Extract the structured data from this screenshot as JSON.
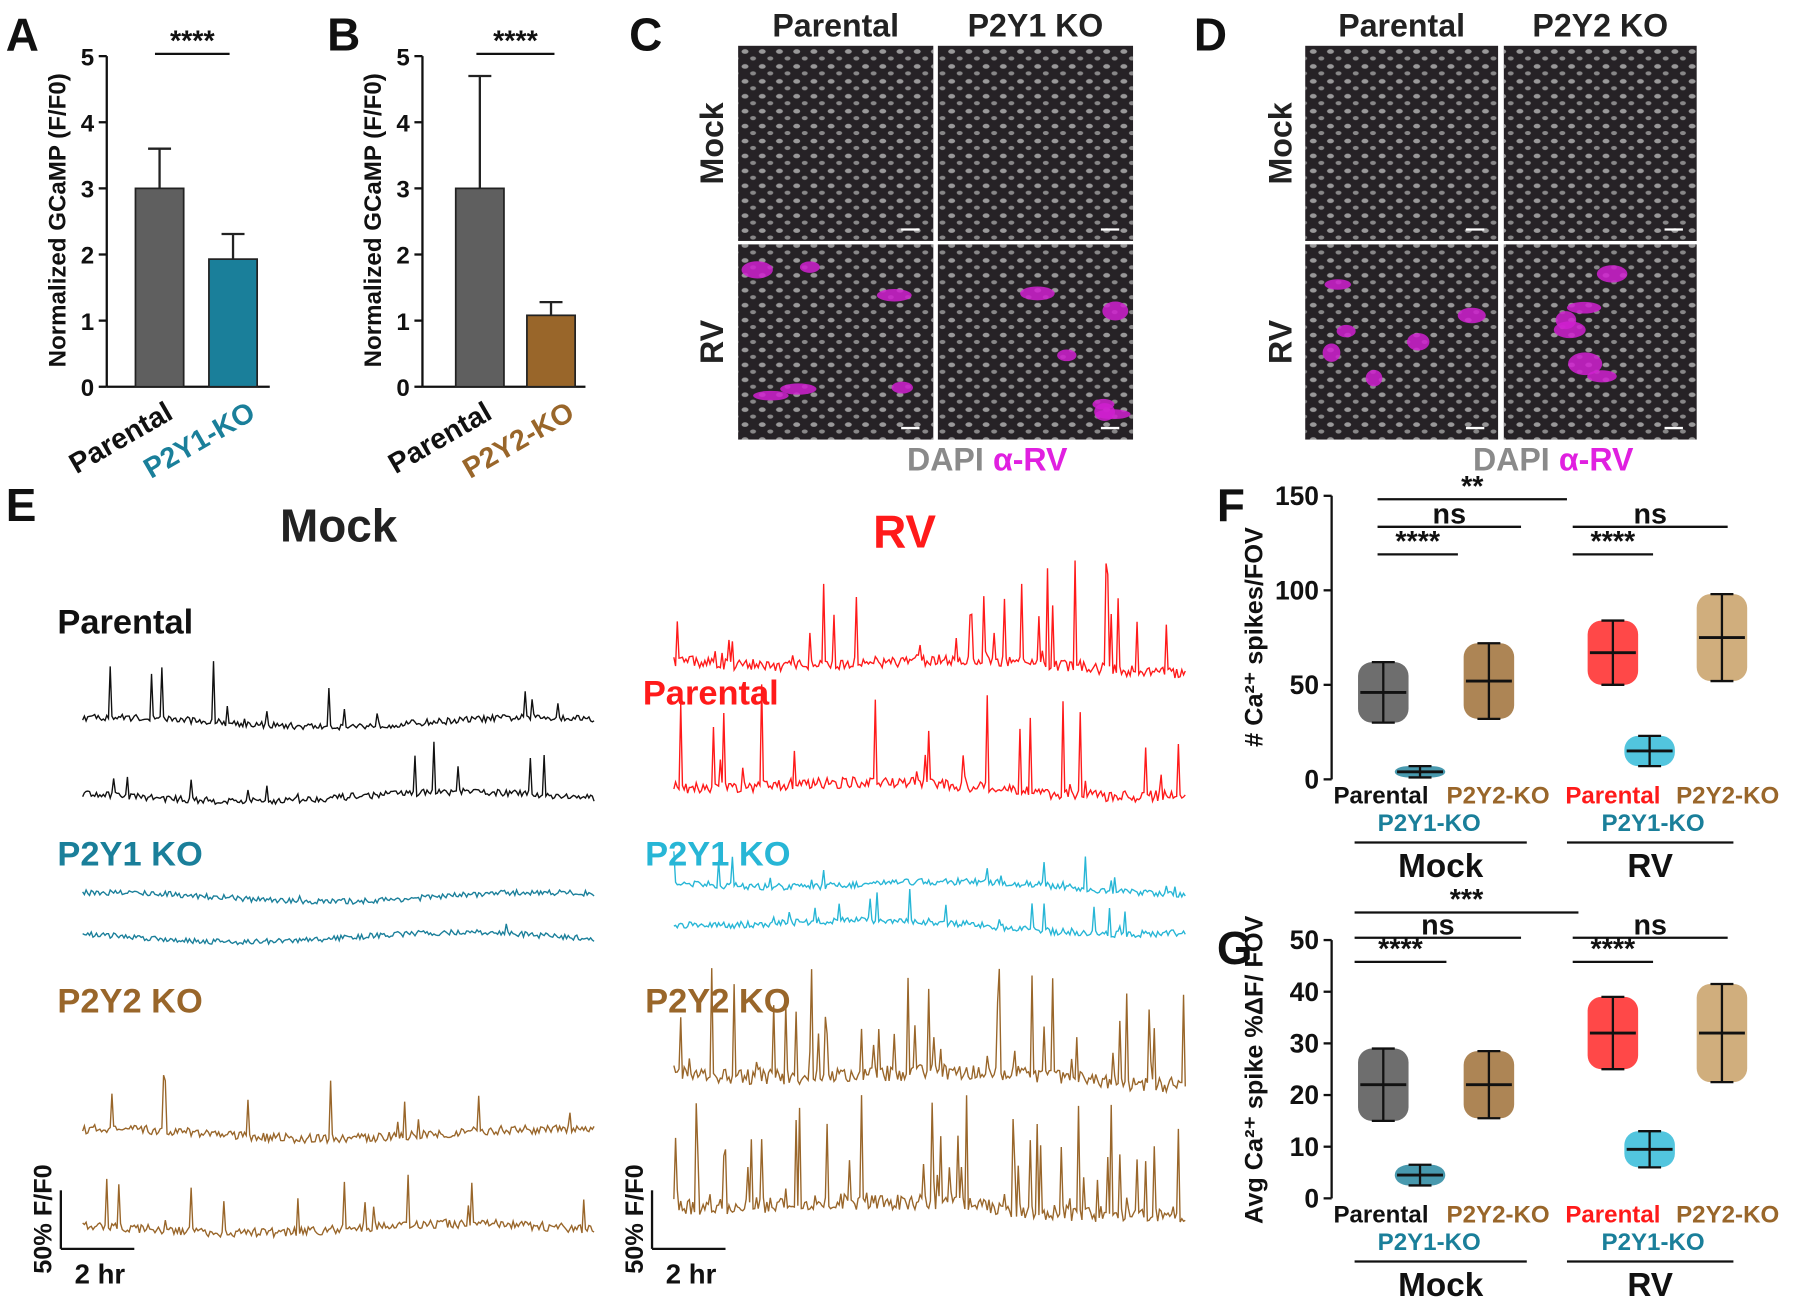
{
  "panel_labels": [
    "A",
    "B",
    "C",
    "D",
    "E",
    "F",
    "G"
  ],
  "chart_data": [
    {
      "type": "bar",
      "ylabel": "Normalized GCaMP (F/F0)",
      "categories": [
        "Parental",
        "P2Y1-KO"
      ],
      "values": [
        3.0,
        1.93
      ],
      "errors": [
        0.6,
        0.38
      ],
      "colors": [
        "#5f5f5f",
        "#1a7f9a"
      ],
      "label_colors": [
        "#111111",
        "#1a7f9a"
      ],
      "ylim": [
        0,
        5
      ],
      "yticks": [
        0,
        1,
        2,
        3,
        4,
        5
      ],
      "significance": [
        "****"
      ]
    },
    {
      "type": "bar",
      "ylabel": "Normalized GCaMP (F/F0)",
      "categories": [
        "Parental",
        "P2Y2-KO"
      ],
      "values": [
        3.0,
        1.08
      ],
      "errors": [
        1.7,
        0.2
      ],
      "colors": [
        "#5f5f5f",
        "#99662a"
      ],
      "label_colors": [
        "#111111",
        "#99662a"
      ],
      "ylim": [
        0,
        5
      ],
      "yticks": [
        0,
        1,
        2,
        3,
        4,
        5
      ],
      "significance": [
        "****"
      ]
    },
    {
      "type": "dot",
      "ylabel": "# Ca²⁺ spikes/FOV",
      "categories": [
        "Parental",
        "P2Y1-KO",
        "P2Y2-KO",
        "Parental",
        "P2Y1-KO",
        "P2Y2-KO"
      ],
      "groups": [
        "Mock",
        "RV"
      ],
      "values": [
        46,
        4,
        52,
        67,
        15,
        75
      ],
      "errors": [
        16,
        3,
        20,
        17,
        8,
        23
      ],
      "colors": [
        "#4a4a4a",
        "#1a7f9a",
        "#99662a",
        "#ff1a1a",
        "#27b6d6",
        "#c49a5c"
      ],
      "label_colors": [
        "#111111",
        "#1a7f9a",
        "#99662a",
        "#ff1a1a",
        "#1a7f9a",
        "#99662a"
      ],
      "ylim": [
        0,
        150
      ],
      "yticks": [
        0,
        50,
        100,
        150
      ],
      "significance": [
        "**",
        "ns",
        "****",
        "ns",
        "****"
      ]
    },
    {
      "type": "dot",
      "ylabel": "Avg Ca²⁺ spike %ΔF/ FOV",
      "categories": [
        "Parental",
        "P2Y1-KO",
        "P2Y2-KO",
        "Parental",
        "P2Y1-KO",
        "P2Y2-KO"
      ],
      "groups": [
        "Mock",
        "RV"
      ],
      "values": [
        22,
        4.5,
        22,
        32,
        9.5,
        32
      ],
      "errors": [
        7,
        2,
        6.5,
        7,
        3.5,
        9.5
      ],
      "colors": [
        "#4a4a4a",
        "#1a7f9a",
        "#99662a",
        "#ff1a1a",
        "#27b6d6",
        "#c49a5c"
      ],
      "label_colors": [
        "#111111",
        "#1a7f9a",
        "#99662a",
        "#ff1a1a",
        "#1a7f9a",
        "#99662a"
      ],
      "ylim": [
        0,
        50
      ],
      "yticks": [
        0,
        10,
        20,
        30,
        40,
        50
      ],
      "significance": [
        "***",
        "ns",
        "****",
        "ns",
        "****"
      ]
    }
  ],
  "microscopy": [
    {
      "columns": [
        "Parental",
        "P2Y1 KO"
      ],
      "rows": [
        "Mock",
        "RV"
      ],
      "stains": [
        "DAPI",
        "α-RV"
      ]
    },
    {
      "columns": [
        "Parental",
        "P2Y2 KO"
      ],
      "rows": [
        "Mock",
        "RV"
      ],
      "stains": [
        "DAPI",
        "α-RV"
      ]
    }
  ],
  "traces": {
    "panels": [
      {
        "title": "Mock",
        "title_color": "#222222",
        "rows": [
          "Parental",
          "P2Y1 KO",
          "P2Y2 KO"
        ],
        "colors": [
          "#111111",
          "#1a7f9a",
          "#99662a"
        ]
      },
      {
        "title": "RV",
        "title_color": "#ff1a1a",
        "rows": [
          "Parental",
          "P2Y1 KO",
          "P2Y2 KO"
        ],
        "colors": [
          "#ff1a1a",
          "#27b6d6",
          "#99662a"
        ]
      }
    ],
    "scale_y": "50% F/F0",
    "scale_x": "2 hr"
  }
}
